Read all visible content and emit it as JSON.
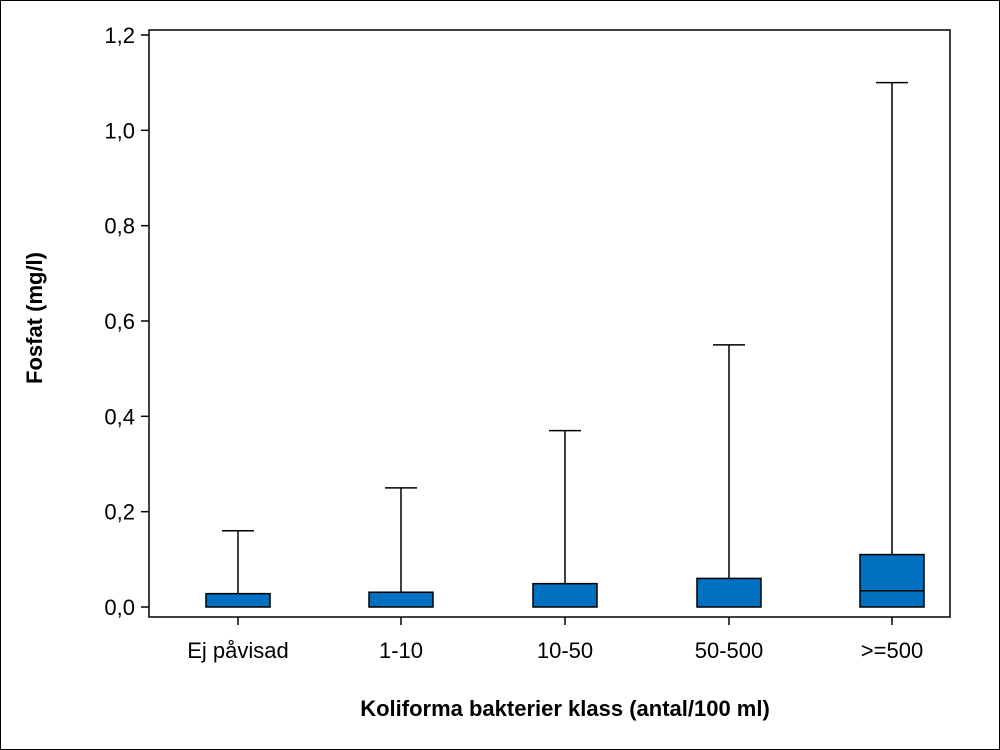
{
  "chart_data": {
    "type": "box",
    "xlabel": "Koliforma bakterier klass (antal/100 ml)",
    "ylabel": "Fosfat (mg/l)",
    "ylim": [
      0,
      1.2
    ],
    "y_ticks": [
      "0,0",
      "0,2",
      "0,4",
      "0,6",
      "0,8",
      "1,0",
      "1,2"
    ],
    "y_tick_values": [
      0,
      0.2,
      0.4,
      0.6,
      0.8,
      1.0,
      1.2
    ],
    "categories": [
      "Ej påvisad",
      "1-10",
      "10-50",
      "50-500",
      ">=500"
    ],
    "boxes": [
      {
        "category": "Ej påvisad",
        "whisker_low": 0.0,
        "q1": 0.0,
        "median": 0.0,
        "q3": 0.028,
        "whisker_high": 0.16
      },
      {
        "category": "1-10",
        "whisker_low": 0.0,
        "q1": 0.0,
        "median": 0.0,
        "q3": 0.031,
        "whisker_high": 0.25
      },
      {
        "category": "10-50",
        "whisker_low": 0.0,
        "q1": 0.0,
        "median": 0.0,
        "q3": 0.049,
        "whisker_high": 0.37
      },
      {
        "category": "50-500",
        "whisker_low": 0.0,
        "q1": 0.0,
        "median": 0.0,
        "q3": 0.06,
        "whisker_high": 0.55
      },
      {
        "category": ">=500",
        "whisker_low": 0.0,
        "q1": 0.0,
        "median": 0.034,
        "q3": 0.11,
        "whisker_high": 1.1
      }
    ],
    "box_color": "#0070C0",
    "grid": false,
    "legend": "none"
  }
}
